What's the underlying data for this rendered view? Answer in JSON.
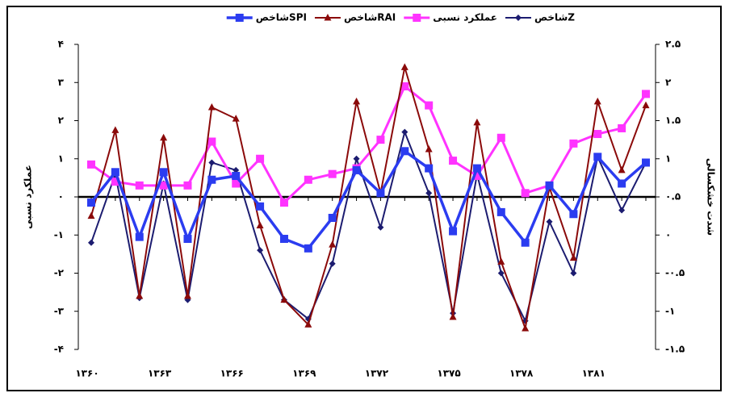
{
  "chart_data": {
    "type": "line",
    "y_label": "عملکرد نسبی",
    "y2_label": "شدت خشکسالی",
    "categories": [
      "۱۳۶۰",
      null,
      null,
      "۱۳۶۳",
      null,
      null,
      "۱۳۶۶",
      null,
      null,
      "۱۳۶۹",
      null,
      null,
      "۱۳۷۲",
      null,
      null,
      "۱۳۷۵",
      null,
      null,
      "۱۳۷۸",
      null,
      null,
      "۱۳۸۱",
      null,
      null
    ],
    "series": [
      {
        "name": "شاخصZ",
        "color": "#1c1c70",
        "marker": "diamond",
        "values": [
          -1.2,
          0.6,
          -2.65,
          0.35,
          -2.7,
          0.9,
          0.7,
          -1.4,
          -2.7,
          -3.2,
          -1.75,
          1.0,
          -0.8,
          1.7,
          0.1,
          -3.05,
          0.6,
          -2.0,
          -3.25,
          -0.65,
          -2.0,
          1.05,
          -0.35,
          0.9
        ]
      },
      {
        "name": "عملکرد نسبی",
        "color": "#ff33ff",
        "marker": "square",
        "values": [
          0.85,
          0.4,
          0.3,
          0.3,
          0.3,
          1.45,
          0.35,
          1.0,
          -0.15,
          0.45,
          0.6,
          0.75,
          1.5,
          2.9,
          2.4,
          0.95,
          0.55,
          1.55,
          0.1,
          0.3,
          1.4,
          1.65,
          1.8,
          2.7
        ]
      },
      {
        "name": "شاخصRAI",
        "color": "#8b0a0a",
        "marker": "triangle",
        "values": [
          -0.5,
          1.75,
          -2.6,
          1.55,
          -2.6,
          2.35,
          2.05,
          -0.75,
          -2.7,
          -3.35,
          -1.25,
          2.5,
          0.1,
          3.4,
          1.25,
          -3.15,
          1.95,
          -1.7,
          -3.45,
          0.25,
          -1.6,
          2.5,
          0.7,
          2.4
        ]
      },
      {
        "name": "شاخصSPI",
        "color": "#2b3cf0",
        "marker": "square",
        "values": [
          -0.15,
          0.65,
          -1.05,
          0.65,
          -1.1,
          0.45,
          0.55,
          -0.25,
          -1.1,
          -1.35,
          -0.55,
          0.7,
          0.1,
          1.2,
          0.75,
          -0.9,
          0.75,
          -0.4,
          -1.2,
          0.3,
          -0.45,
          1.05,
          0.35,
          0.9
        ]
      }
    ],
    "ylim": [
      -4,
      4
    ],
    "yticks": [
      {
        "value": -4,
        "label": "-۴"
      },
      {
        "value": -3,
        "label": "-۳"
      },
      {
        "value": -2,
        "label": "-۲"
      },
      {
        "value": -1,
        "label": "-۱"
      },
      {
        "value": 0,
        "label": "۰"
      },
      {
        "value": 1,
        "label": "۱"
      },
      {
        "value": 2,
        "label": "۲"
      },
      {
        "value": 3,
        "label": "۳"
      },
      {
        "value": 4,
        "label": "۴"
      }
    ],
    "y2lim": [
      -1.5,
      2.5
    ],
    "y2ticks": [
      {
        "value": -1.5,
        "label": "-۱.۵"
      },
      {
        "value": -1,
        "label": "-۱"
      },
      {
        "value": -0.5,
        "label": "-۰.۵"
      },
      {
        "value": 0,
        "label": "۰"
      },
      {
        "value": 0.5,
        "label": "۰.۵"
      },
      {
        "value": 1,
        "label": "۱"
      },
      {
        "value": 1.5,
        "label": "۱.۵"
      },
      {
        "value": 2,
        "label": "۲"
      },
      {
        "value": 2.5,
        "label": "۲.۵"
      }
    ]
  }
}
